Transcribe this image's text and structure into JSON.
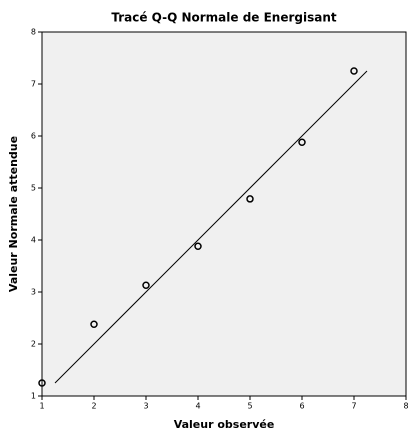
{
  "chart_data": {
    "type": "scatter",
    "title": "Tracé Q-Q Normale de Energisant",
    "xlabel": "Valeur observée",
    "ylabel": "Valeur Normale attendue",
    "x": [
      1,
      2,
      3,
      4,
      5,
      6,
      7
    ],
    "values": [
      1.25,
      2.38,
      3.13,
      3.88,
      4.79,
      5.88,
      7.25
    ],
    "color": "#000000",
    "reference_line": {
      "x": [
        1.25,
        7.25
      ],
      "y": [
        1.25,
        7.25
      ]
    },
    "xlim": [
      1,
      8
    ],
    "xticks": [
      1,
      2,
      3,
      4,
      5,
      6,
      7,
      8
    ],
    "ylim": [
      1,
      8
    ],
    "yticks": [
      1,
      2,
      3,
      4,
      5,
      6,
      7,
      8
    ]
  }
}
